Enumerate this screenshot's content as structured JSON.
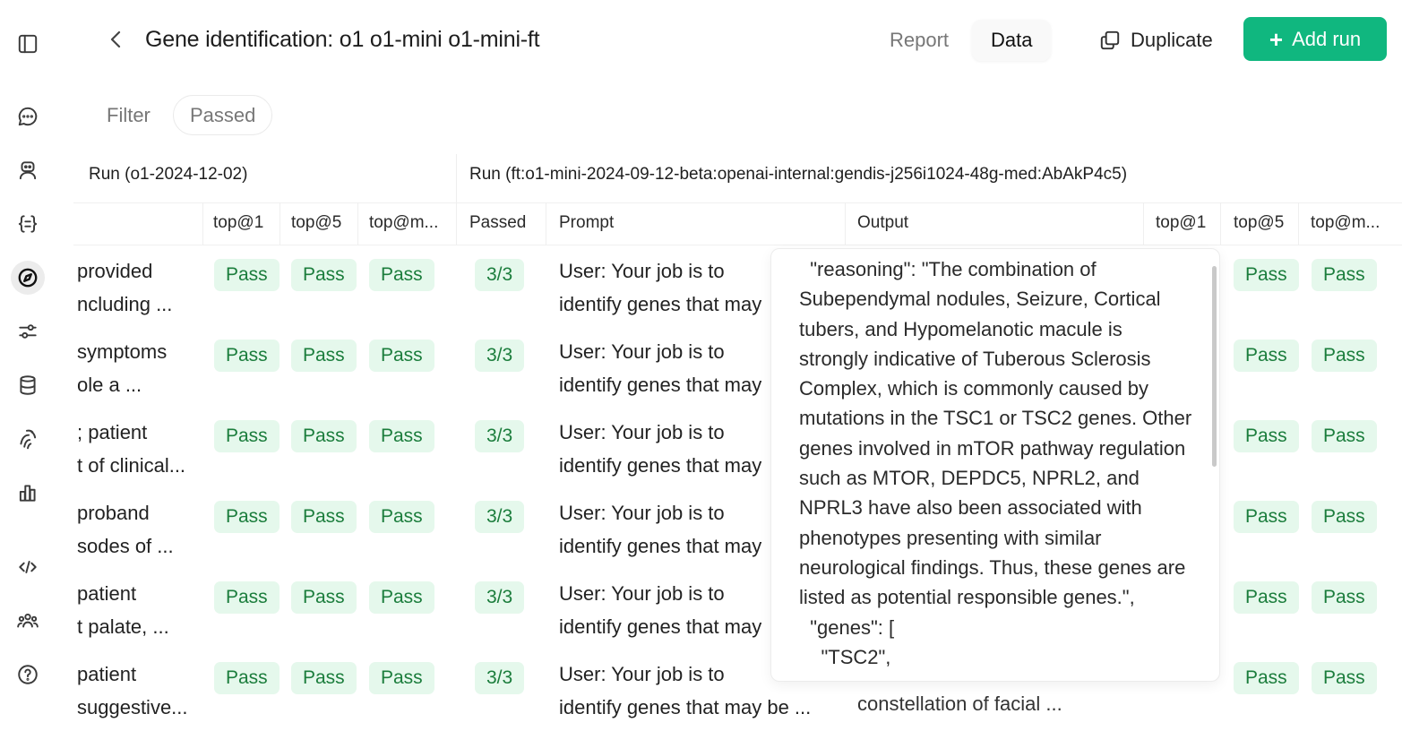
{
  "header": {
    "title": "Gene identification: o1 o1-mini o1-mini-ft",
    "tabs": {
      "report": "Report",
      "data": "Data"
    },
    "duplicate_label": "Duplicate",
    "add_run_label": "Add run",
    "accent_color": "#10b77f"
  },
  "filter": {
    "label": "Filter",
    "chip": "Passed"
  },
  "sidebar": {
    "icons": [
      "panel-toggle-icon",
      "chat-icon",
      "assistant-icon",
      "json-icon",
      "compass-icon",
      "sliders-icon",
      "database-icon",
      "fingerprint-icon",
      "bar-chart-icon",
      "code-icon",
      "team-icon",
      "help-icon"
    ],
    "active": "compass-icon"
  },
  "table": {
    "run1_label": "Run (o1-2024-12-02)",
    "run2_label": "Run (ft:o1-mini-2024-09-12-beta:openai-internal:gendis-j256i1024-48g-med:AbAkP4c5)",
    "columns": {
      "top1": "top@1",
      "top5": "top@5",
      "topm": "top@m...",
      "passed": "Passed",
      "prompt": "Prompt",
      "output": "Output",
      "top1_b": "top@1",
      "top5_b": "top@5",
      "topm_b": "top@m..."
    },
    "pass_label": "Pass",
    "rows": [
      {
        "desc1": "provided",
        "desc2": "ncluding ...",
        "passed": "3/3",
        "prompt1": "User: Your job is to",
        "prompt2": "identify genes that may"
      },
      {
        "desc1": "symptoms",
        "desc2": "ole a ...",
        "passed": "3/3",
        "prompt1": "User: Your job is to",
        "prompt2": "identify genes that may"
      },
      {
        "desc1": "; patient",
        "desc2": "t of clinical...",
        "passed": "3/3",
        "prompt1": "User: Your job is to",
        "prompt2": "identify genes that may"
      },
      {
        "desc1": "proband",
        "desc2": "sodes of ...",
        "passed": "3/3",
        "prompt1": "User: Your job is to",
        "prompt2": "identify genes that may"
      },
      {
        "desc1": "patient",
        "desc2": "t palate, ...",
        "passed": "3/3",
        "prompt1": "User: Your job is to",
        "prompt2": "identify genes that may"
      },
      {
        "desc1": "patient",
        "desc2": "suggestive...",
        "passed": "3/3",
        "prompt1": "User: Your job is to",
        "prompt2": "identify genes that may be ..."
      }
    ],
    "last_row_output_partial": "constellation of facial ..."
  },
  "popover": {
    "text": "  \"reasoning\": \"The combination of Subependymal nodules, Seizure, Cortical tubers, and Hypomelanotic macule is strongly indicative of Tuberous Sclerosis Complex, which is commonly caused by mutations in the TSC1 or TSC2 genes. Other genes involved in mTOR pathway regulation such as MTOR, DEPDC5, NPRL2, and NPRL3 have also been associated with phenotypes presenting with similar neurological findings. Thus, these genes are listed as potential responsible genes.\",\n  \"genes\": [\n    \"TSC2\","
  }
}
